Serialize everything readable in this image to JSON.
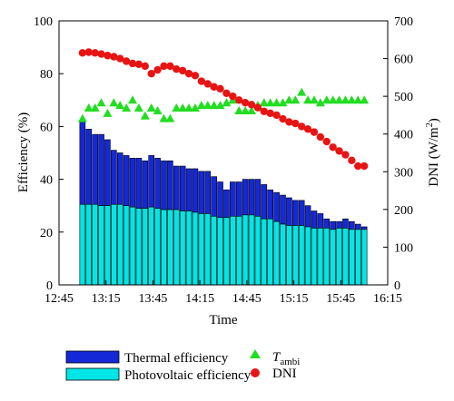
{
  "chart_data": {
    "type": "bar",
    "xlabel": "Time",
    "ylabel_left": "Efficiency (%)",
    "ylabel_right": "DNI (W/m²)",
    "ylabel_right_prefix": "DNI (W/m",
    "ylabel_right_sup": "2",
    "ylabel_right_suffix": ")",
    "xlim_minutes": [
      765,
      975
    ],
    "x_tick_labels": [
      "12:45",
      "13:15",
      "13:45",
      "14:15",
      "14:45",
      "15:15",
      "15:45",
      "16:15"
    ],
    "ylim_left": [
      0,
      100
    ],
    "y_left_tick_labels": [
      "0",
      "20",
      "40",
      "60",
      "80",
      "100"
    ],
    "ylim_right": [
      0,
      700
    ],
    "y_right_tick_labels": [
      "0",
      "100",
      "200",
      "300",
      "400",
      "500",
      "600",
      "700"
    ],
    "times": [
      "13:00",
      "13:04",
      "13:08",
      "13:12",
      "13:16",
      "13:20",
      "13:24",
      "13:28",
      "13:32",
      "13:36",
      "13:40",
      "13:44",
      "13:48",
      "13:52",
      "13:56",
      "14:00",
      "14:04",
      "14:08",
      "14:12",
      "14:16",
      "14:20",
      "14:24",
      "14:28",
      "14:32",
      "14:36",
      "14:40",
      "14:44",
      "14:48",
      "14:52",
      "14:56",
      "15:00",
      "15:04",
      "15:08",
      "15:12",
      "15:16",
      "15:20",
      "15:24",
      "15:28",
      "15:32",
      "15:36",
      "15:40",
      "15:44",
      "15:48",
      "15:52",
      "15:56",
      "16:00"
    ],
    "series": [
      {
        "name": "Thermal efficiency",
        "kind": "stacked-bar-top",
        "color": "#1428d8",
        "total_values": [
          62,
          59,
          57,
          57,
          55,
          51,
          50,
          49,
          48,
          48,
          47,
          49,
          48,
          47,
          47,
          45,
          45,
          44,
          44,
          43,
          43,
          41,
          39,
          36,
          39,
          39,
          40,
          40,
          40,
          38,
          36,
          35,
          34,
          33,
          32,
          32,
          30,
          28,
          27,
          25,
          24,
          24,
          25,
          24,
          23,
          22
        ]
      },
      {
        "name": "Photovoltaic efficiency",
        "kind": "bar",
        "color": "#00e6e6",
        "values": [
          30.5,
          30.5,
          30.5,
          30,
          30,
          30.5,
          30.5,
          30,
          29.5,
          29,
          29,
          29.5,
          29,
          28.5,
          28.5,
          28.5,
          28,
          28,
          27.5,
          27,
          27,
          26,
          25.5,
          25.5,
          26,
          26,
          26.5,
          26.5,
          26,
          25,
          25,
          24,
          23,
          22.5,
          22.5,
          22.5,
          22,
          21.5,
          21.5,
          21.5,
          21,
          21.5,
          21.5,
          21,
          21,
          21
        ]
      },
      {
        "name": "T_ambi",
        "name_main": "T",
        "name_sub": "ambi",
        "kind": "scatter-triangle",
        "axis": "left",
        "color": "#22dd22",
        "times": [
          "13:00",
          "13:04",
          "13:08",
          "13:12",
          "13:16",
          "13:20",
          "13:24",
          "13:28",
          "13:32",
          "13:36",
          "13:40",
          "13:44",
          "13:48",
          "13:52",
          "13:56",
          "14:00",
          "14:04",
          "14:08",
          "14:12",
          "14:16",
          "14:20",
          "14:24",
          "14:28",
          "14:32",
          "14:36",
          "14:40",
          "14:44",
          "14:48",
          "14:52",
          "14:56",
          "15:00",
          "15:04",
          "15:08",
          "15:12",
          "15:16",
          "15:20",
          "15:24",
          "15:28",
          "15:32",
          "15:36",
          "15:40",
          "15:44",
          "15:48",
          "15:52",
          "15:56",
          "16:00"
        ],
        "values": [
          63,
          67,
          67,
          69,
          65,
          69,
          68,
          67,
          70,
          67,
          64,
          67,
          66,
          63,
          63,
          67,
          67,
          67,
          67,
          68,
          68,
          68,
          68,
          69,
          70,
          66,
          66,
          66,
          68,
          69,
          69,
          69,
          69,
          70,
          70,
          73,
          70,
          70,
          69,
          70,
          70,
          70,
          70,
          70,
          70,
          70
        ]
      },
      {
        "name": "DNI",
        "kind": "scatter-circle",
        "axis": "right",
        "color": "#e81414",
        "times": [
          "13:00",
          "13:04",
          "13:08",
          "13:12",
          "13:16",
          "13:20",
          "13:24",
          "13:28",
          "13:32",
          "13:36",
          "13:40",
          "13:44",
          "13:48",
          "13:52",
          "13:56",
          "14:00",
          "14:04",
          "14:08",
          "14:12",
          "14:16",
          "14:20",
          "14:24",
          "14:28",
          "14:32",
          "14:36",
          "14:40",
          "14:44",
          "14:48",
          "14:52",
          "14:56",
          "15:00",
          "15:04",
          "15:08",
          "15:12",
          "15:16",
          "15:20",
          "15:24",
          "15:28",
          "15:32",
          "15:36",
          "15:40",
          "15:44",
          "15:48",
          "15:52",
          "15:56",
          "16:00"
        ],
        "values": [
          615,
          617,
          615,
          612,
          608,
          605,
          600,
          593,
          587,
          585,
          580,
          560,
          570,
          580,
          580,
          572,
          568,
          560,
          555,
          540,
          533,
          525,
          520,
          508,
          500,
          490,
          483,
          478,
          470,
          460,
          455,
          450,
          440,
          432,
          428,
          420,
          413,
          405,
          392,
          380,
          365,
          355,
          345,
          330,
          315,
          315
        ]
      }
    ],
    "legend": {
      "placement": "bottom",
      "entries": [
        {
          "label": "Thermal efficiency",
          "symbol": "box",
          "color": "#1428d8"
        },
        {
          "label": "Photovoltaic efficiency",
          "symbol": "box",
          "color": "#00e6e6"
        },
        {
          "label": "T_ambi",
          "symbol": "triangle",
          "color": "#22dd22"
        },
        {
          "label": "DNI",
          "symbol": "circle",
          "color": "#e81414"
        }
      ]
    },
    "grid": false
  }
}
